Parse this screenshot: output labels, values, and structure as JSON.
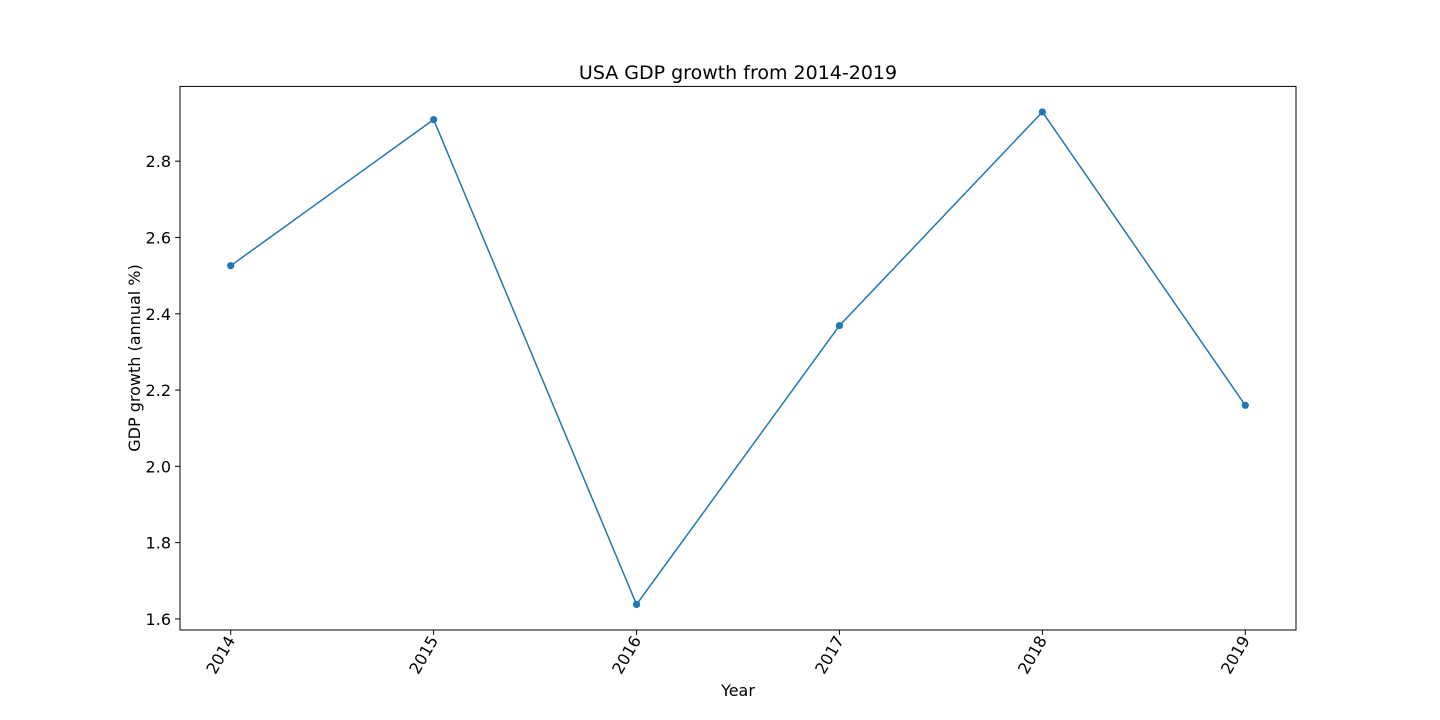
{
  "chart_data": {
    "type": "line",
    "title": "USA GDP growth from 2014-2019",
    "xlabel": "Year",
    "ylabel": "GDP growth (annual %)",
    "x": [
      "2014",
      "2015",
      "2016",
      "2017",
      "2018",
      "2019"
    ],
    "series": [
      {
        "values": [
          2.526,
          2.909,
          1.638,
          2.369,
          2.929,
          2.16
        ],
        "color": "#1f77b4"
      }
    ],
    "yticks": [
      "1.6",
      "1.8",
      "2.0",
      "2.2",
      "2.4",
      "2.6",
      "2.8"
    ],
    "ylim": [
      1.571,
      2.996
    ],
    "xtick_rotation": "60 degrees",
    "grid": false,
    "legend": "none",
    "marker": "circle"
  }
}
